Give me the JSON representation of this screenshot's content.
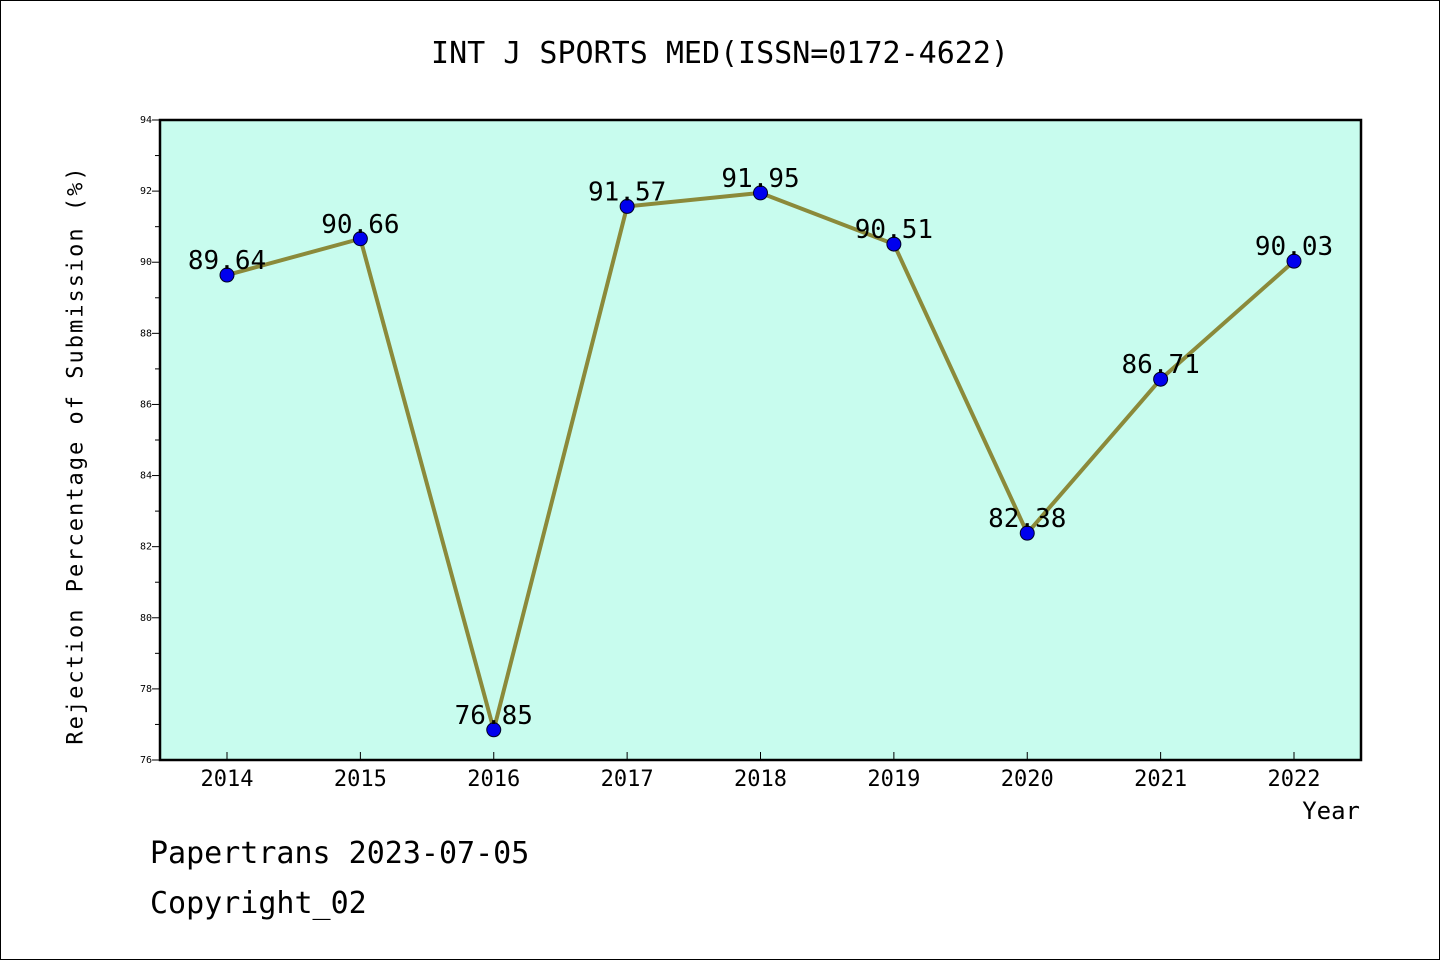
{
  "chart_data": {
    "type": "line",
    "title": "INT J SPORTS MED(ISSN=0172-4622)",
    "xlabel": "Year",
    "ylabel": "Rejection Percentage of Submission (%)",
    "x": [
      "2014",
      "2015",
      "2016",
      "2017",
      "2018",
      "2019",
      "2020",
      "2021",
      "2022"
    ],
    "series": [
      {
        "values": [
          89.64,
          90.66,
          76.85,
          91.57,
          91.95,
          90.51,
          82.38,
          86.71,
          90.03
        ],
        "data_labels": [
          "89.64",
          "90.66",
          "76.85",
          "91.57",
          "91.95",
          "90.51",
          "82.38",
          "86.71",
          "90.03"
        ]
      }
    ],
    "ylim": [
      76,
      94
    ],
    "yticks": [
      "76",
      "78",
      "80",
      "82",
      "84",
      "86",
      "88",
      "90",
      "92",
      "94"
    ],
    "grid": false,
    "colors": {
      "plot_background": "#c8fcee",
      "line": "#8b8a3a",
      "marker": "#0000ee"
    }
  },
  "footer": {
    "line1": "Papertrans 2023-07-05",
    "line2": "Copyright_02"
  }
}
